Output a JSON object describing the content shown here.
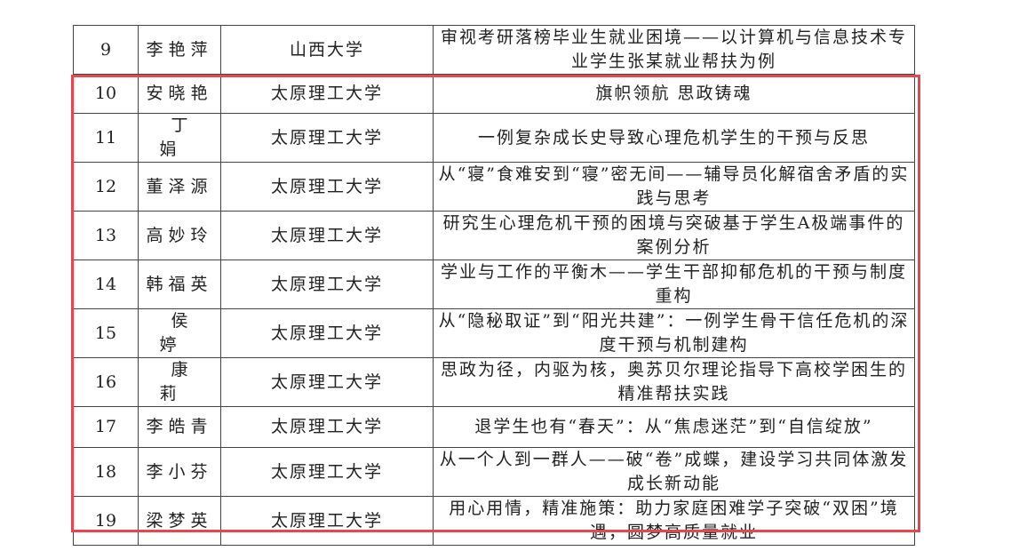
{
  "highlight_color": "#e8454f",
  "rows": [
    {
      "no": "9",
      "name": "李艳萍",
      "school": "山西大学",
      "title": "审视考研落榜毕业生就业困境——以计算机与信息技术专业学生张某就业帮扶为例"
    },
    {
      "no": "10",
      "name": "安晓艳",
      "school": "太原理工大学",
      "title": "旗帜领航 思政铸魂"
    },
    {
      "no": "11",
      "name": "丁娟",
      "school": "太原理工大学",
      "title": "一例复杂成长史导致心理危机学生的干预与反思"
    },
    {
      "no": "12",
      "name": "董泽源",
      "school": "太原理工大学",
      "title": "从“寝”食难安到“寝”密无间——辅导员化解宿舍矛盾的实践与思考"
    },
    {
      "no": "13",
      "name": "高妙玲",
      "school": "太原理工大学",
      "title": "研究生心理危机干预的困境与突破基于学生A极端事件的案例分析"
    },
    {
      "no": "14",
      "name": "韩福英",
      "school": "太原理工大学",
      "title": "学业与工作的平衡木——学生干部抑郁危机的干预与制度重构"
    },
    {
      "no": "15",
      "name": "侯婷",
      "school": "太原理工大学",
      "title": "从“隐秘取证”到“阳光共建”：一例学生骨干信任危机的深度干预与机制建构"
    },
    {
      "no": "16",
      "name": "康莉",
      "school": "太原理工大学",
      "title": "思政为径，内驱为核，奥苏贝尔理论指导下高校学困生的精准帮扶实践"
    },
    {
      "no": "17",
      "name": "李皓青",
      "school": "太原理工大学",
      "title": "退学生也有“春天”：从“焦虑迷茫”到“自信绽放”"
    },
    {
      "no": "18",
      "name": "李小芬",
      "school": "太原理工大学",
      "title": "从一个人到一群人——破“卷”成蝶，建设学习共同体激发成长新动能"
    },
    {
      "no": "19",
      "name": "梁梦英",
      "school": "太原理工大学",
      "title": "用心用情，精准施策：助力家庭困难学子突破“双困”境遇，圆梦高质量就业"
    }
  ]
}
